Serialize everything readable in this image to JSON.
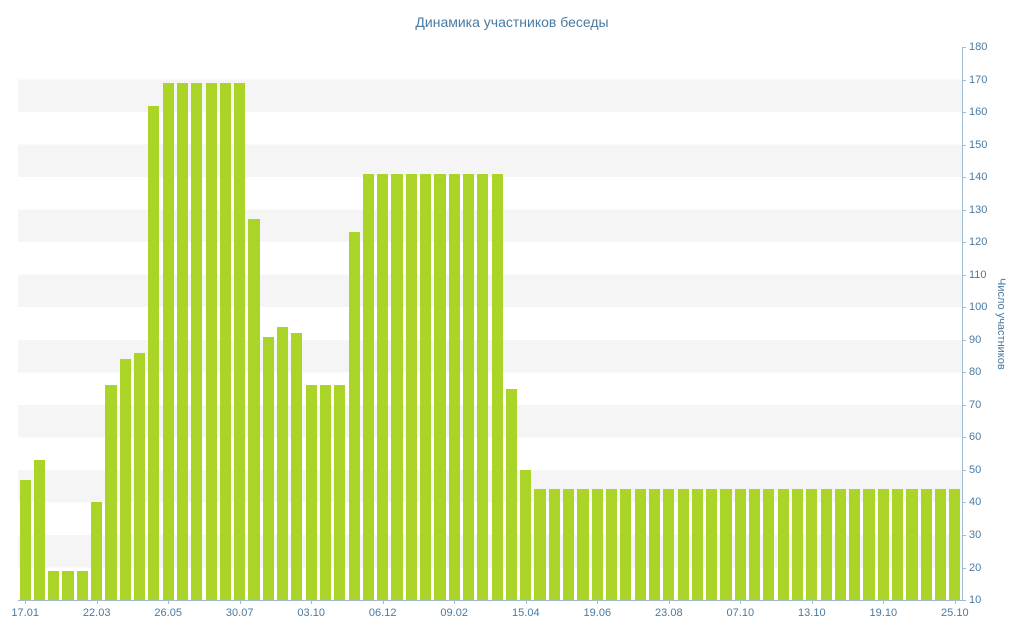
{
  "chart_data": {
    "type": "bar",
    "title": "Динамика участников беседы",
    "xlabel": "",
    "ylabel": "Число участников",
    "ylim": [
      10,
      180
    ],
    "ytick_step": 10,
    "grid": "horizontal-bands",
    "legend": "none",
    "x_tick_every": 5,
    "x_tick_labels": [
      "17.01",
      "22.03",
      "26.05",
      "30.07",
      "03.10",
      "06.12",
      "09.02",
      "15.04",
      "19.06",
      "23.08",
      "07.10",
      "13.10",
      "19.10",
      "25.10"
    ],
    "values": [
      47,
      53,
      19,
      19,
      19,
      40,
      76,
      84,
      86,
      162,
      169,
      169,
      169,
      169,
      169,
      169,
      127,
      91,
      94,
      92,
      76,
      76,
      76,
      123,
      141,
      141,
      141,
      141,
      141,
      141,
      141,
      141,
      141,
      141,
      75,
      50,
      44,
      44,
      44,
      44,
      44,
      44,
      44,
      44,
      44,
      44,
      44,
      44,
      44,
      44,
      44,
      44,
      44,
      44,
      44,
      44,
      44,
      44,
      44,
      44,
      44,
      44,
      44,
      44,
      44,
      44
    ],
    "colors": {
      "bar": "#aad428",
      "title": "#4a7aa0",
      "tick_label": "#4a7aa0",
      "axis_line": "#9dbbd1",
      "band": "#f5f5f5",
      "background": "#ffffff"
    }
  }
}
